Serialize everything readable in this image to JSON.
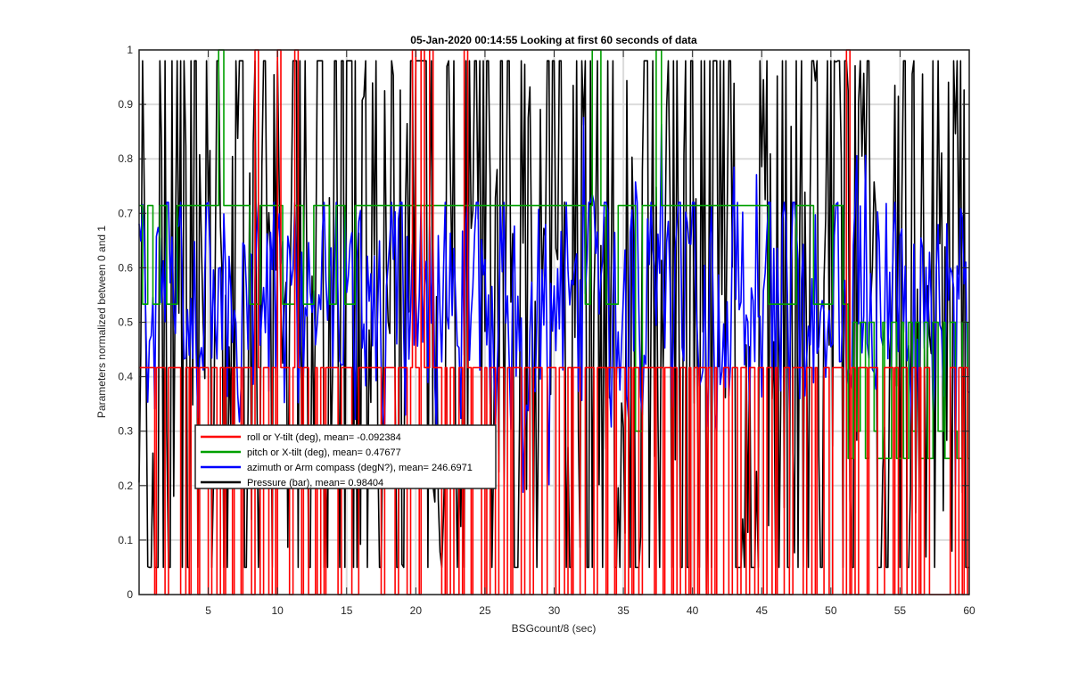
{
  "chart_data": {
    "type": "line",
    "title": "05-Jan-2020 00:14:55 Looking at first 60 seconds of data",
    "xlabel": "BSGcount/8 (sec)",
    "ylabel": "Parameters normalized between 0 and 1",
    "xlim": [
      0,
      60
    ],
    "ylim": [
      0,
      1
    ],
    "xticks": [
      5,
      10,
      15,
      20,
      25,
      30,
      35,
      40,
      45,
      50,
      55,
      60
    ],
    "yticks": [
      0,
      0.1,
      0.2,
      0.3,
      0.4,
      0.5,
      0.6,
      0.7,
      0.8,
      0.9,
      1
    ],
    "grid": true,
    "legend_position": "lower-left",
    "series": [
      {
        "name": "roll or Y-tilt (deg), mean= -0.092384",
        "color": "#ff0000",
        "levels": [
          0,
          0.4167,
          1
        ],
        "points_per_sec": 8,
        "sampled_values": [
          0.4167,
          0.4167,
          0.4167,
          0.4167,
          0.4167,
          0,
          0.4167,
          0.4167,
          0.4167,
          0,
          0.4167,
          0.4167,
          0.4167,
          0.4167,
          0,
          0,
          0.4167,
          0,
          0.4167,
          0.4167,
          0,
          0.4167,
          0.4167,
          0.4167,
          0,
          0.4167,
          0.4167,
          0,
          0.4167,
          0,
          0.4167,
          0.4167,
          0,
          0.4167,
          0.4167,
          0,
          0.4167,
          0.4167,
          0.4167,
          0,
          1,
          0.4167,
          0,
          0.4167,
          0.4167,
          0,
          0.4167,
          0,
          1,
          0.4167,
          0.4167,
          0.4167,
          0,
          0.4167,
          1,
          0.4167,
          0,
          0.4167,
          0.4167,
          0,
          0,
          0.4167,
          0,
          0.4167,
          0,
          0.4167,
          0.4167,
          0.4167,
          0.4167,
          0,
          0.4167,
          0.4167,
          0.4167,
          0.4167,
          0,
          0,
          0.4167,
          0.4167,
          0.4167,
          0.4167,
          0.4167,
          0.4167,
          0.4167,
          0.4167,
          0,
          0.4167,
          0.4167,
          0.4167,
          0.4167,
          0,
          0.4167,
          0.4167,
          0.4167,
          0,
          0.4167,
          1,
          0.4167,
          0,
          1,
          0.4167,
          0.4167,
          1,
          0.4167,
          0.4167,
          0.4167,
          0,
          0.4167,
          0,
          0.4167,
          0,
          0,
          0.4167,
          0,
          1,
          0.4167,
          0,
          0.4167,
          0.4167,
          0.4167,
          0,
          0.4167,
          0,
          0.4167,
          0.4167,
          0,
          0.4167,
          0.4167,
          0,
          0.4167,
          0,
          0.4167,
          0.4167,
          0.4167,
          0,
          0.4167,
          0.4167,
          0,
          0.4167,
          0.4167,
          0.4167,
          0,
          0,
          0.4167,
          0.4167,
          0.4167,
          0,
          0.4167,
          0.4167,
          0,
          0.4167,
          0,
          0.4167,
          0.4167,
          0,
          0,
          0.4167,
          0.4167,
          0.4167,
          0,
          0.4167,
          0.4167,
          0.4167,
          0,
          0.4167,
          0.4167,
          0,
          0.4167,
          0.4167,
          0.4167,
          0,
          0.4167,
          0,
          0.4167,
          0.4167,
          0,
          0.4167,
          0.4167,
          0.4167,
          0.4167,
          0,
          0.4167,
          0.4167,
          0,
          0.4167,
          0.4167,
          0,
          0.4167,
          0,
          0.4167,
          0.4167,
          0,
          0.4167,
          0,
          0.4167,
          0,
          0.4167,
          0.4167,
          0,
          0.4167,
          0,
          0.4167,
          0,
          0,
          0.4167,
          0.4167,
          0,
          0.4167,
          0.4167,
          0,
          0.4167,
          0.4167,
          0,
          0.4167,
          0.4167,
          0,
          0.4167,
          0.4167,
          0,
          0.4167,
          0.4167,
          0,
          0.4167,
          0,
          0,
          0.4167,
          0.4167,
          0,
          0.4167,
          0.4167,
          0.4167,
          0.4167,
          0,
          0.4167,
          0.4167,
          0,
          0.4167,
          0,
          0,
          0.4167,
          0.4167,
          0,
          0.4167,
          0.4167,
          0.4167,
          0.4167,
          0,
          1,
          0,
          0.4167,
          0,
          0.4167,
          0.4167,
          0.4167,
          0,
          0.4167,
          0.4167,
          0.4167,
          0,
          0,
          0.4167,
          0.4167,
          0.4167,
          0,
          0.4167,
          0,
          0.4167,
          0.4167,
          0,
          0,
          0.4167,
          0,
          0.4167,
          0,
          0.4167,
          0.4167,
          0,
          0,
          0,
          0,
          0,
          0,
          0,
          0.4167,
          0.4167,
          0,
          0.4167,
          0,
          0.4167,
          0
        ]
      },
      {
        "name": "pitch or X-tilt (deg), mean= 0.47677",
        "color": "#00a000",
        "levels": [
          0.25,
          0.3,
          0.5,
          0.5333,
          0.7143,
          1
        ],
        "points_per_sec": 8,
        "sampled_values": [
          0.7143,
          0.5333,
          0.5333,
          0.7143,
          0.7143,
          0.5333,
          0.5333,
          0.5333,
          0.7143,
          0.7143,
          0.7143,
          0.5333,
          0.5333,
          0.5333,
          0.5333,
          0.7143,
          0.7143,
          0.7143,
          0.7143,
          0.7143,
          0.7143,
          0.7143,
          0.7143,
          0.7143,
          0.7143,
          0.7143,
          0.7143,
          0.7143,
          0.7143,
          0.7143,
          0.7143,
          0.7143,
          1,
          1,
          0.7143,
          0.7143,
          0.7143,
          0.7143,
          0.7143,
          0.7143,
          0.7143,
          0.7143,
          0.7143,
          0.7143,
          0.7143,
          0.5333,
          0.5333,
          0.5333,
          0.5333,
          0.7143,
          0.7143,
          0.7143,
          0.7143,
          0.7143,
          0.7143,
          0.7143,
          0.7143,
          0.7143,
          0.5333,
          0.5333,
          0.5333,
          0.5333,
          0.5333,
          0.7143,
          0.7143,
          0.7143,
          0.7143,
          0.5333,
          0.5333,
          0.5333,
          0.5333,
          0.7143,
          0.7143,
          0.7143,
          0.7143,
          0.7143,
          0.7143,
          0.5333,
          0.5333,
          0.5333,
          0.7143,
          0.7143,
          0.7143,
          0.7143,
          0.5333,
          0.5333,
          0.5333,
          0.5333,
          0.7143,
          0.7143,
          0.7143,
          0.7143,
          0.7143,
          0.7143,
          0.7143,
          0.7143,
          0.7143,
          0.7143,
          0.7143,
          0.7143,
          0.7143,
          0.7143,
          0.7143,
          0.7143,
          0.7143,
          0.7143,
          0.7143,
          0.7143,
          0.7143,
          0.7143,
          0.7143,
          0.7143,
          0.7143,
          0.7143,
          0.7143,
          0.7143,
          0.7143,
          0.7143,
          0.7143,
          0.7143,
          0.7143,
          0.7143,
          0.7143,
          0.7143,
          0.7143,
          0.7143,
          0.7143,
          0.7143,
          0.7143,
          0.7143,
          0.7143,
          0.7143,
          0.7143,
          0.7143,
          0.7143,
          0.7143,
          0.7143,
          0.7143,
          0.7143,
          0.7143,
          0.7143,
          0.7143,
          0.7143,
          0.7143,
          0.7143,
          0.7143,
          0.7143,
          0.7143,
          0.7143,
          0.7143,
          0.7143,
          0.7143,
          0.7143,
          0.7143,
          0.7143,
          0.7143,
          0.7143,
          0.7143,
          0.7143,
          0.7143,
          0.7143,
          0.7143,
          0.7143,
          0.7143,
          0.7143,
          0.7143,
          0.7143,
          0.7143,
          0.7143,
          0.7143,
          0.7143,
          0.7143,
          0.7143,
          0.7143,
          0.7143,
          0.7143,
          0.7143,
          0.7143,
          0.7143,
          0.7143,
          0.7143,
          0.7143,
          0.5333,
          0.5333,
          0.7143,
          1,
          1,
          1,
          0.7143,
          0.7143,
          0.5333,
          0.5333,
          0.5333,
          0.5333,
          0.5333,
          0.7143,
          0.7143,
          0.7143,
          0.7143,
          0.7143,
          0.7143,
          0.7143,
          0.3,
          0.3,
          0.3,
          0.7143,
          0.7143,
          0.7143,
          0.7143,
          0.7143,
          0.7143,
          1,
          1,
          0.7143,
          0.7143,
          0.7143,
          0.7143,
          0.7143,
          0.7143,
          0.7143,
          0.7143,
          0.7143,
          0.7143,
          0.7143,
          0.7143,
          0.7143,
          0.7143,
          0.7143,
          0.7143,
          0.7143,
          0.7143,
          0.7143,
          0.7143,
          0.7143,
          0.7143,
          0.7143,
          0.7143,
          0.7143,
          0.7143,
          0.7143,
          0.7143,
          0.7143,
          0.7143,
          0.7143,
          0.7143,
          0.7143,
          0.7143,
          0.7143,
          0.7143,
          0.7143,
          0.7143,
          0.7143,
          0.7143,
          0.7143,
          0.7143,
          0.7143,
          0.7143,
          0.5333,
          0.5333,
          0.5333,
          0.5333,
          0.5333,
          0.5333,
          0.5333,
          0.5333,
          0.5333,
          0.5333,
          0.5333,
          0.7143,
          0.7143,
          0.7143,
          0.7143,
          0.7143,
          0.7143,
          0.7143,
          0.5333,
          0.5333,
          0.5333,
          0.5333,
          0.5333,
          0.5333,
          0.5333,
          0.5333,
          0.7143,
          0.7143,
          0.7143,
          0.7143,
          0.5333,
          0.5333,
          0.25,
          0.25,
          0.5,
          0.5,
          0.3,
          0.5,
          0.5,
          0.25,
          0.25,
          0.5,
          0.5,
          0.3,
          0.25,
          0.25,
          0.5,
          0.25,
          0.25,
          0.25,
          0.5,
          0.5,
          0.25,
          0.25,
          0.5,
          0.25,
          0.25,
          0.5,
          0.3,
          0.3,
          0.5,
          0.25,
          0.25,
          0.5,
          0.5,
          0.25,
          0.25,
          0.5,
          0.5,
          0.3,
          0.3,
          0.5,
          0.25,
          0.25,
          0.5,
          0.5,
          0.3,
          0.25,
          0.25,
          0.5,
          0.5,
          0.25
        ]
      },
      {
        "name": "azimuth or Arm compass (degN?), mean= 246.6971",
        "color": "#0000ff",
        "range_typical": [
          0.3,
          0.72
        ],
        "range_extreme": [
          0.17,
          0.93
        ],
        "points_per_sec": 8
      },
      {
        "name": "Pressure (bar), mean= 0.98404",
        "color": "#000000",
        "range_typical": [
          0.05,
          0.98
        ],
        "range_extreme": [
          0.0,
          1.0
        ],
        "points_per_sec": 8
      }
    ]
  }
}
